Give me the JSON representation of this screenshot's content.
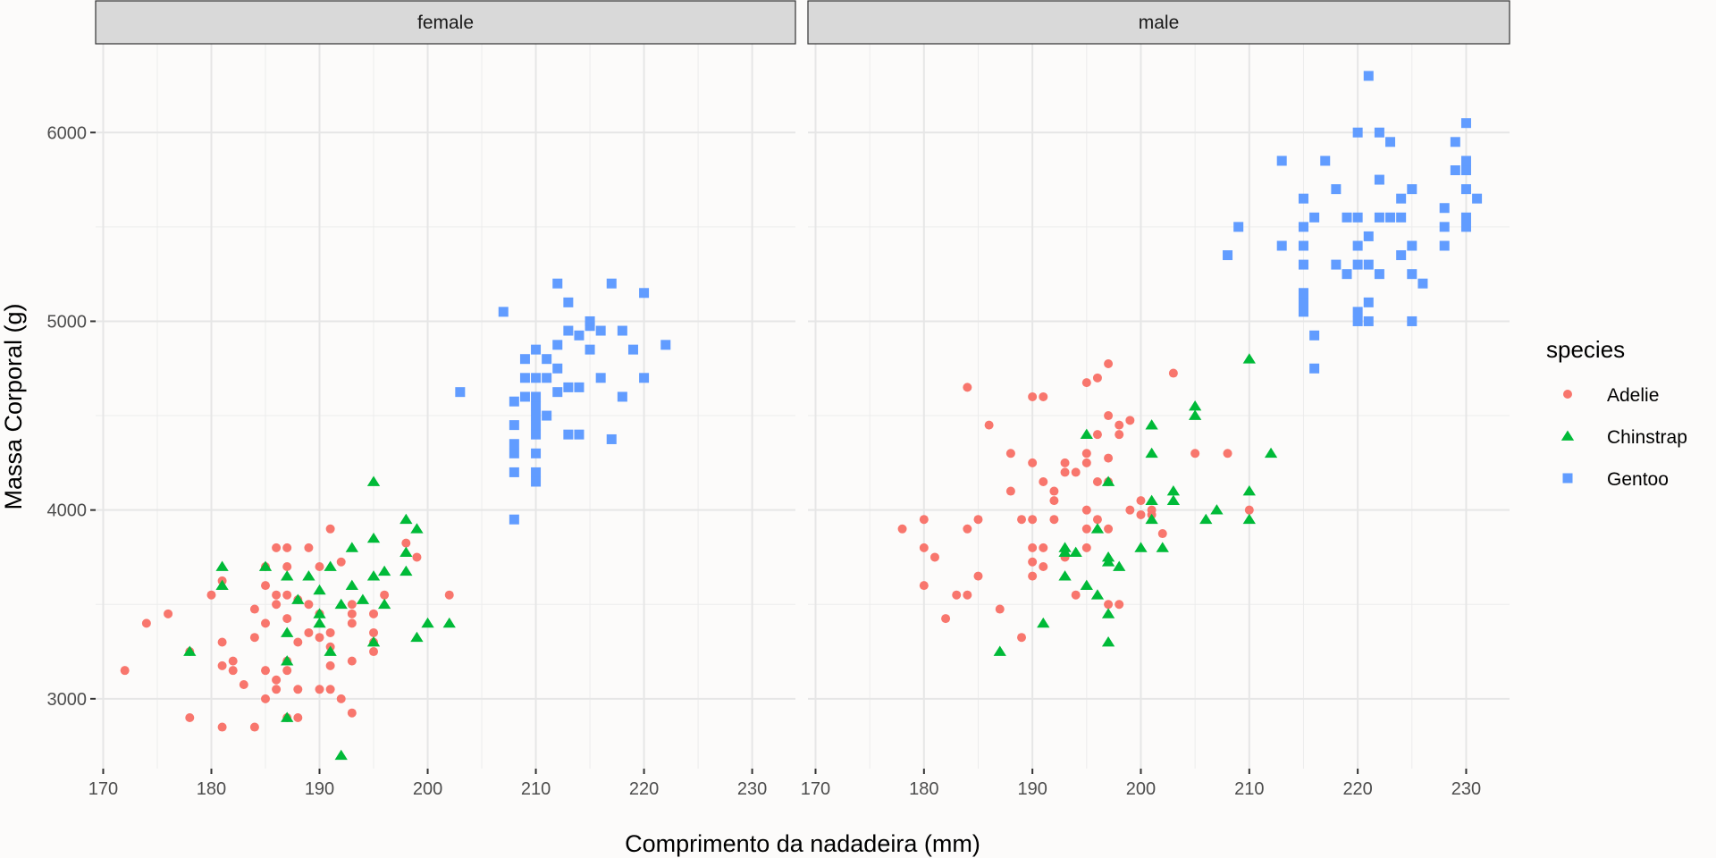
{
  "chart_data": {
    "type": "scatter",
    "xlabel": "Comprimento da nadadeira (mm)",
    "ylabel": "Massa Corporal (g)",
    "xlim": [
      169.3,
      234
    ],
    "ylim": [
      2630,
      6470
    ],
    "xticks": [
      170,
      180,
      190,
      200,
      210,
      220,
      230
    ],
    "yticks": [
      3000,
      4000,
      5000,
      6000
    ],
    "grid": true,
    "legend": {
      "title": "species",
      "placement": "right"
    },
    "facets": [
      "female",
      "male"
    ],
    "series": [
      {
        "name": "Adelie",
        "color": "#F8766D",
        "shape": "circle",
        "female": [
          [
            172,
            3150
          ],
          [
            174,
            3400
          ],
          [
            176,
            3450
          ],
          [
            178,
            2900
          ],
          [
            178,
            3250
          ],
          [
            180,
            3550
          ],
          [
            181,
            2850
          ],
          [
            181,
            3175
          ],
          [
            181,
            3300
          ],
          [
            181,
            3625
          ],
          [
            182,
            3200
          ],
          [
            182,
            3150
          ],
          [
            183,
            3075
          ],
          [
            184,
            2850
          ],
          [
            184,
            3325
          ],
          [
            184,
            3475
          ],
          [
            185,
            3000
          ],
          [
            185,
            3150
          ],
          [
            185,
            3400
          ],
          [
            185,
            3600
          ],
          [
            185,
            3700
          ],
          [
            186,
            3100
          ],
          [
            186,
            3050
          ],
          [
            186,
            3550
          ],
          [
            186,
            3800
          ],
          [
            186,
            3500
          ],
          [
            187,
            2900
          ],
          [
            187,
            3150
          ],
          [
            187,
            3200
          ],
          [
            187,
            3425
          ],
          [
            187,
            3550
          ],
          [
            187,
            3700
          ],
          [
            187,
            3800
          ],
          [
            188,
            2900
          ],
          [
            188,
            3050
          ],
          [
            188,
            3300
          ],
          [
            188,
            3525
          ],
          [
            189,
            3350
          ],
          [
            189,
            3500
          ],
          [
            189,
            3800
          ],
          [
            190,
            3050
          ],
          [
            190,
            3325
          ],
          [
            190,
            3450
          ],
          [
            190,
            3700
          ],
          [
            191,
            3050
          ],
          [
            191,
            3175
          ],
          [
            191,
            3275
          ],
          [
            191,
            3350
          ],
          [
            191,
            3900
          ],
          [
            192,
            3000
          ],
          [
            192,
            3725
          ],
          [
            193,
            2925
          ],
          [
            193,
            3200
          ],
          [
            193,
            3400
          ],
          [
            193,
            3450
          ],
          [
            193,
            3500
          ],
          [
            195,
            3250
          ],
          [
            195,
            3300
          ],
          [
            195,
            3350
          ],
          [
            195,
            3450
          ],
          [
            196,
            3550
          ],
          [
            198,
            3825
          ],
          [
            199,
            3750
          ],
          [
            202,
            3550
          ]
        ],
        "male": [
          [
            178,
            3900
          ],
          [
            180,
            3600
          ],
          [
            180,
            3800
          ],
          [
            180,
            3950
          ],
          [
            181,
            3750
          ],
          [
            182,
            3425
          ],
          [
            183,
            3550
          ],
          [
            184,
            3550
          ],
          [
            184,
            3900
          ],
          [
            184,
            4650
          ],
          [
            185,
            3650
          ],
          [
            185,
            3950
          ],
          [
            186,
            4450
          ],
          [
            187,
            3475
          ],
          [
            188,
            4100
          ],
          [
            188,
            4300
          ],
          [
            189,
            3325
          ],
          [
            189,
            3950
          ],
          [
            190,
            3650
          ],
          [
            190,
            3725
          ],
          [
            190,
            3800
          ],
          [
            190,
            3950
          ],
          [
            190,
            4250
          ],
          [
            190,
            4600
          ],
          [
            191,
            3700
          ],
          [
            191,
            3800
          ],
          [
            191,
            4150
          ],
          [
            191,
            4600
          ],
          [
            192,
            3950
          ],
          [
            192,
            4050
          ],
          [
            192,
            4100
          ],
          [
            193,
            3750
          ],
          [
            193,
            4200
          ],
          [
            193,
            4250
          ],
          [
            194,
            3550
          ],
          [
            194,
            4200
          ],
          [
            195,
            3800
          ],
          [
            195,
            3900
          ],
          [
            195,
            4000
          ],
          [
            195,
            4250
          ],
          [
            195,
            4300
          ],
          [
            195,
            4675
          ],
          [
            196,
            3950
          ],
          [
            196,
            4150
          ],
          [
            196,
            4400
          ],
          [
            196,
            4700
          ],
          [
            197,
            3500
          ],
          [
            197,
            3900
          ],
          [
            197,
            4150
          ],
          [
            197,
            4275
          ],
          [
            197,
            4500
          ],
          [
            197,
            4775
          ],
          [
            198,
            3500
          ],
          [
            198,
            4400
          ],
          [
            198,
            4450
          ],
          [
            199,
            4000
          ],
          [
            199,
            4475
          ],
          [
            200,
            3975
          ],
          [
            200,
            4050
          ],
          [
            201,
            3975
          ],
          [
            201,
            4000
          ],
          [
            202,
            3875
          ],
          [
            203,
            4725
          ],
          [
            205,
            4300
          ],
          [
            208,
            4300
          ],
          [
            210,
            4000
          ]
        ]
      },
      {
        "name": "Chinstrap",
        "color": "#00BA38",
        "shape": "triangle",
        "female": [
          [
            178,
            3250
          ],
          [
            181,
            3600
          ],
          [
            181,
            3700
          ],
          [
            185,
            3700
          ],
          [
            187,
            2900
          ],
          [
            187,
            3200
          ],
          [
            187,
            3350
          ],
          [
            187,
            3650
          ],
          [
            188,
            3525
          ],
          [
            189,
            3650
          ],
          [
            190,
            3400
          ],
          [
            190,
            3450
          ],
          [
            190,
            3575
          ],
          [
            191,
            3250
          ],
          [
            191,
            3700
          ],
          [
            192,
            2700
          ],
          [
            192,
            3500
          ],
          [
            193,
            3600
          ],
          [
            193,
            3800
          ],
          [
            194,
            3525
          ],
          [
            195,
            3300
          ],
          [
            195,
            3650
          ],
          [
            195,
            3850
          ],
          [
            195,
            4150
          ],
          [
            196,
            3500
          ],
          [
            196,
            3675
          ],
          [
            198,
            3675
          ],
          [
            198,
            3775
          ],
          [
            198,
            3950
          ],
          [
            199,
            3325
          ],
          [
            199,
            3900
          ],
          [
            200,
            3400
          ],
          [
            202,
            3400
          ]
        ],
        "male": [
          [
            187,
            3250
          ],
          [
            191,
            3400
          ],
          [
            193,
            3650
          ],
          [
            193,
            3800
          ],
          [
            193,
            3775
          ],
          [
            194,
            3775
          ],
          [
            195,
            3600
          ],
          [
            195,
            4400
          ],
          [
            196,
            3550
          ],
          [
            196,
            3900
          ],
          [
            197,
            3300
          ],
          [
            197,
            3450
          ],
          [
            197,
            3725
          ],
          [
            197,
            3750
          ],
          [
            197,
            4150
          ],
          [
            198,
            3700
          ],
          [
            200,
            3800
          ],
          [
            201,
            3950
          ],
          [
            201,
            4050
          ],
          [
            201,
            4300
          ],
          [
            201,
            4450
          ],
          [
            202,
            3800
          ],
          [
            203,
            4050
          ],
          [
            203,
            4100
          ],
          [
            205,
            4500
          ],
          [
            205,
            4550
          ],
          [
            206,
            3950
          ],
          [
            207,
            4000
          ],
          [
            210,
            3950
          ],
          [
            210,
            4100
          ],
          [
            210,
            4800
          ],
          [
            212,
            4300
          ]
        ]
      },
      {
        "name": "Gentoo",
        "color": "#619CFF",
        "shape": "square",
        "female": [
          [
            203,
            4625
          ],
          [
            207,
            5050
          ],
          [
            208,
            3950
          ],
          [
            208,
            4200
          ],
          [
            208,
            4300
          ],
          [
            208,
            4350
          ],
          [
            208,
            4450
          ],
          [
            208,
            4575
          ],
          [
            209,
            4600
          ],
          [
            209,
            4700
          ],
          [
            209,
            4800
          ],
          [
            210,
            4150
          ],
          [
            210,
            4200
          ],
          [
            210,
            4300
          ],
          [
            210,
            4400
          ],
          [
            210,
            4450
          ],
          [
            210,
            4500
          ],
          [
            210,
            4550
          ],
          [
            210,
            4600
          ],
          [
            210,
            4700
          ],
          [
            210,
            4850
          ],
          [
            211,
            4500
          ],
          [
            211,
            4700
          ],
          [
            211,
            4800
          ],
          [
            212,
            4625
          ],
          [
            212,
            4750
          ],
          [
            212,
            4875
          ],
          [
            212,
            5200
          ],
          [
            213,
            4400
          ],
          [
            213,
            4650
          ],
          [
            213,
            4950
          ],
          [
            213,
            5100
          ],
          [
            214,
            4400
          ],
          [
            214,
            4650
          ],
          [
            214,
            4925
          ],
          [
            215,
            4850
          ],
          [
            215,
            4975
          ],
          [
            215,
            5000
          ],
          [
            216,
            4700
          ],
          [
            216,
            4950
          ],
          [
            217,
            4375
          ],
          [
            217,
            5200
          ],
          [
            218,
            4600
          ],
          [
            218,
            4950
          ],
          [
            219,
            4850
          ],
          [
            220,
            4700
          ],
          [
            220,
            5150
          ],
          [
            222,
            4875
          ]
        ],
        "male": [
          [
            208,
            5350
          ],
          [
            209,
            5500
          ],
          [
            213,
            5400
          ],
          [
            213,
            5850
          ],
          [
            215,
            5050
          ],
          [
            215,
            5100
          ],
          [
            215,
            5150
          ],
          [
            215,
            5300
          ],
          [
            215,
            5400
          ],
          [
            215,
            5500
          ],
          [
            215,
            5650
          ],
          [
            216,
            4750
          ],
          [
            216,
            4925
          ],
          [
            216,
            5550
          ],
          [
            217,
            5850
          ],
          [
            218,
            5300
          ],
          [
            218,
            5700
          ],
          [
            219,
            5250
          ],
          [
            219,
            5550
          ],
          [
            220,
            5000
          ],
          [
            220,
            5050
          ],
          [
            220,
            5300
          ],
          [
            220,
            5400
          ],
          [
            220,
            5550
          ],
          [
            220,
            6000
          ],
          [
            221,
            5000
          ],
          [
            221,
            5100
          ],
          [
            221,
            5300
          ],
          [
            221,
            5450
          ],
          [
            221,
            6300
          ],
          [
            222,
            5250
          ],
          [
            222,
            5550
          ],
          [
            222,
            5750
          ],
          [
            222,
            6000
          ],
          [
            223,
            5550
          ],
          [
            223,
            5950
          ],
          [
            224,
            5350
          ],
          [
            224,
            5550
          ],
          [
            224,
            5650
          ],
          [
            225,
            5000
          ],
          [
            225,
            5250
          ],
          [
            225,
            5400
          ],
          [
            225,
            5700
          ],
          [
            226,
            5200
          ],
          [
            228,
            5400
          ],
          [
            228,
            5500
          ],
          [
            228,
            5600
          ],
          [
            229,
            5800
          ],
          [
            229,
            5950
          ],
          [
            230,
            5500
          ],
          [
            230,
            5550
          ],
          [
            230,
            5700
          ],
          [
            230,
            5800
          ],
          [
            230,
            5850
          ],
          [
            230,
            6050
          ],
          [
            231,
            5650
          ]
        ]
      }
    ]
  }
}
